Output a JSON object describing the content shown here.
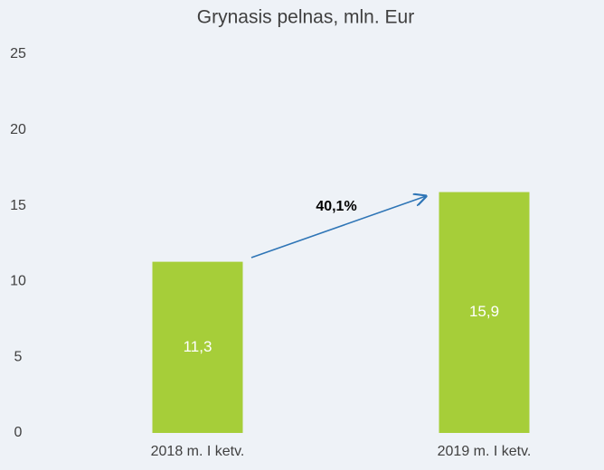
{
  "chart_data": {
    "type": "bar",
    "title": "Grynasis pelnas, mln. Eur",
    "categories": [
      "2018 m. I ketv.",
      "2019 m. I ketv."
    ],
    "values": [
      11.3,
      15.9
    ],
    "value_labels": [
      "11,3",
      "15,9"
    ],
    "color": "#a6ce39",
    "ylim": [
      0,
      25
    ],
    "yticks": [
      0,
      5,
      10,
      15,
      20,
      25
    ],
    "grid": false,
    "annotations": [
      {
        "text": "40,1%"
      }
    ]
  }
}
